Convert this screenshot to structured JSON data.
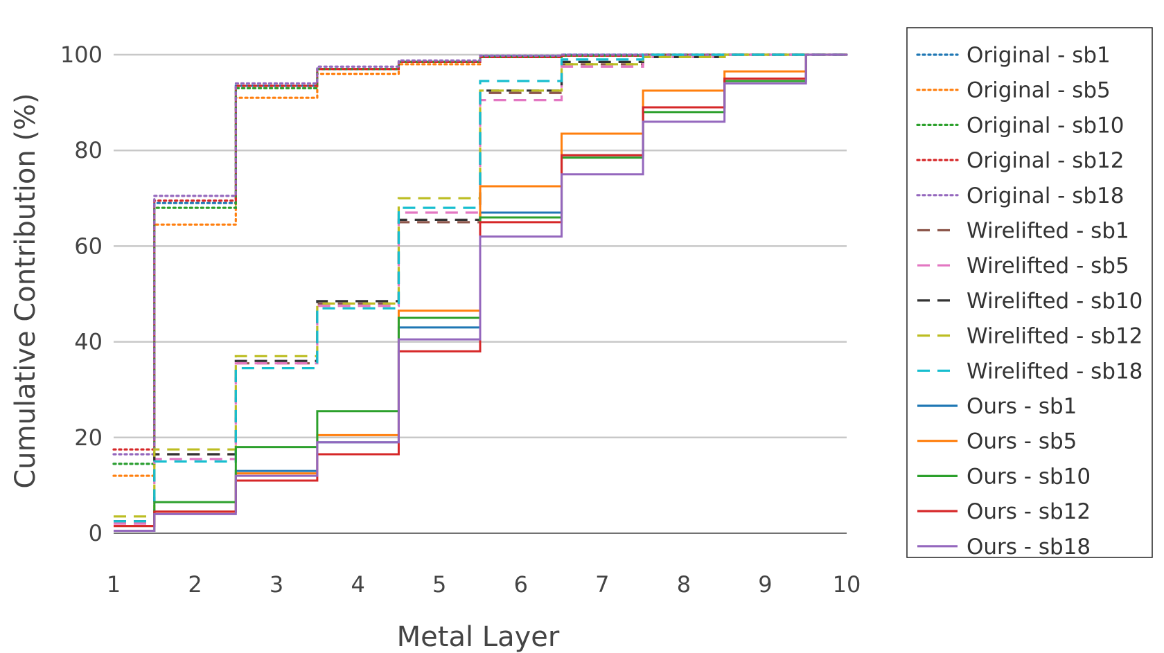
{
  "chart_data": {
    "type": "line",
    "line_shape": "step (horizontal-vertical-horizontal, steps centered between layers)",
    "title": "",
    "xlabel": "Metal Layer",
    "ylabel": "Cumulative Contribution (%)",
    "x": [
      1,
      2,
      3,
      4,
      5,
      6,
      7,
      8,
      9,
      10
    ],
    "x_ticks": [
      "1",
      "2",
      "3",
      "4",
      "5",
      "6",
      "7",
      "8",
      "9",
      "10"
    ],
    "y_ticks": [
      "0",
      "20",
      "40",
      "60",
      "80",
      "100"
    ],
    "y_tick_values": [
      0,
      20,
      40,
      60,
      80,
      100
    ],
    "xlim": [
      1,
      10
    ],
    "ylim": [
      -4,
      104
    ],
    "grid": "horizontal",
    "legend_position": "right",
    "series": [
      {
        "name": "Original - sb1",
        "dash": "dot",
        "color": "#1f77b4",
        "values": [
          14.5,
          69.0,
          93.5,
          97.0,
          98.5,
          99.7,
          100,
          100,
          100,
          100
        ]
      },
      {
        "name": "Original - sb5",
        "dash": "dot",
        "color": "#ff7f0e",
        "values": [
          12.0,
          64.5,
          91.0,
          96.0,
          98.0,
          99.5,
          99.8,
          100,
          100,
          100
        ]
      },
      {
        "name": "Original - sb10",
        "dash": "dot",
        "color": "#2ca02c",
        "values": [
          14.5,
          68.0,
          93.0,
          97.0,
          98.5,
          99.5,
          99.8,
          100,
          100,
          100
        ]
      },
      {
        "name": "Original - sb12",
        "dash": "dot",
        "color": "#d62728",
        "values": [
          17.5,
          69.5,
          93.5,
          97.0,
          98.5,
          99.5,
          99.8,
          100,
          100,
          100
        ]
      },
      {
        "name": "Original - sb18",
        "dash": "dot",
        "color": "#9467bd",
        "values": [
          16.5,
          70.5,
          94.0,
          97.5,
          98.8,
          99.8,
          100,
          100,
          100,
          100
        ]
      },
      {
        "name": "Wirelifted - sb1",
        "dash": "dash",
        "color": "#8c564b",
        "values": [
          2.5,
          16.5,
          35.5,
          48.0,
          65.0,
          92.0,
          98.0,
          99.5,
          100,
          100
        ]
      },
      {
        "name": "Wirelifted - sb5",
        "dash": "dash",
        "color": "#e377c2",
        "values": [
          2.0,
          15.5,
          35.5,
          47.5,
          67.0,
          90.5,
          97.5,
          99.5,
          100,
          100
        ]
      },
      {
        "name": "Wirelifted - sb10",
        "dash": "dash",
        "color": "#333333",
        "values": [
          2.5,
          16.5,
          36.0,
          48.5,
          65.5,
          92.5,
          98.5,
          99.5,
          100,
          100
        ]
      },
      {
        "name": "Wirelifted - sb12",
        "dash": "dash",
        "color": "#bcbd22",
        "values": [
          3.5,
          17.5,
          37.0,
          48.0,
          70.0,
          92.5,
          98.0,
          99.5,
          100,
          100
        ]
      },
      {
        "name": "Wirelifted - sb18",
        "dash": "dash",
        "color": "#17becf",
        "values": [
          2.5,
          15.0,
          34.5,
          47.0,
          68.0,
          94.5,
          99.0,
          100,
          100,
          100
        ]
      },
      {
        "name": "Ours - sb1",
        "dash": "solid",
        "color": "#1f77b4",
        "values": [
          1.5,
          4.5,
          13.0,
          19.0,
          43.0,
          67.0,
          79.0,
          89.0,
          95.0,
          100
        ]
      },
      {
        "name": "Ours - sb5",
        "dash": "solid",
        "color": "#ff7f0e",
        "values": [
          1.5,
          4.5,
          12.5,
          20.5,
          46.5,
          72.5,
          83.5,
          92.5,
          96.5,
          100
        ]
      },
      {
        "name": "Ours - sb10",
        "dash": "solid",
        "color": "#2ca02c",
        "values": [
          0.5,
          6.5,
          18.0,
          25.5,
          45.0,
          66.0,
          78.5,
          88.0,
          94.5,
          100
        ]
      },
      {
        "name": "Ours - sb12",
        "dash": "solid",
        "color": "#d62728",
        "values": [
          1.5,
          4.5,
          11.0,
          16.5,
          38.0,
          65.0,
          79.0,
          89.0,
          95.0,
          100
        ]
      },
      {
        "name": "Ours - sb18",
        "dash": "solid",
        "color": "#9467bd",
        "values": [
          0.5,
          4.0,
          12.0,
          19.0,
          40.5,
          62.0,
          75.0,
          86.0,
          94.0,
          100
        ]
      }
    ]
  }
}
